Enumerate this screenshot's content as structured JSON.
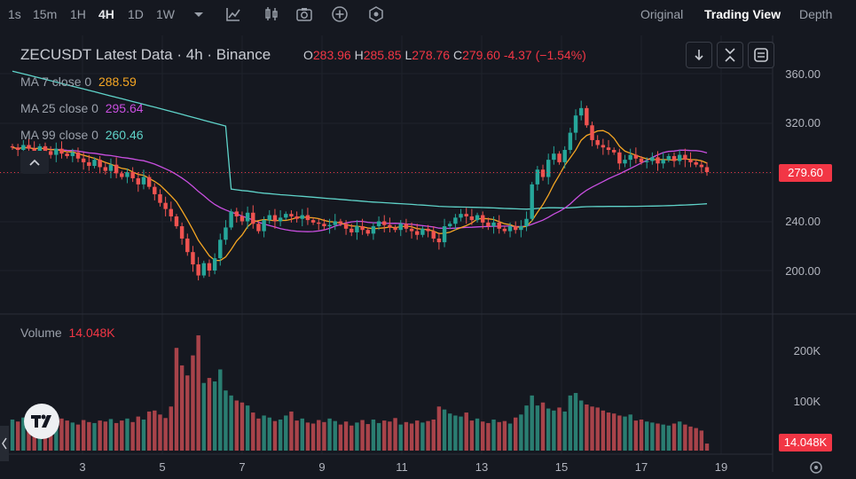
{
  "toolbar": {
    "timeframes": [
      "1s",
      "15m",
      "1H",
      "4H",
      "1D",
      "1W"
    ],
    "active_timeframe": "4H",
    "icons": [
      "chevron-down-icon",
      "indicator-icon",
      "candles-icon",
      "camera-icon",
      "add-circle-icon",
      "hexagon-icon"
    ],
    "views": [
      "Original",
      "Trading View",
      "Depth"
    ],
    "active_view": "Trading View"
  },
  "legend": {
    "symbol_title": "ZECUSDT Latest Data · 4h · Binance",
    "o_label": "O",
    "o_value": "283.96",
    "h_label": "H",
    "h_value": "285.85",
    "l_label": "L",
    "l_value": "278.76",
    "c_label": "C",
    "c_value": "279.60",
    "change": "-4.37 (−1.54%)",
    "ma7_label": "MA 7 close 0",
    "ma7_value": "288.59",
    "ma25_label": "MA 25 close 0",
    "ma25_value": "295.64",
    "ma99_label": "MA 99 close 0",
    "ma99_value": "260.46",
    "volume_label": "Volume",
    "volume_value": "14.048K"
  },
  "colors": {
    "up": "#26a69a",
    "down": "#ef5350",
    "ma7": "#f5a623",
    "ma25": "#c94fe0",
    "ma99": "#5fd3c9",
    "background": "#151820",
    "last_price_bg": "#f23645"
  },
  "price_axis": {
    "labels": [
      "360.00",
      "320.00",
      "280.00",
      "240.00",
      "200.00"
    ],
    "last_price": "279.60"
  },
  "volume_axis": {
    "labels": [
      "200K",
      "100K"
    ],
    "last_volume": "14.048K"
  },
  "x_axis": {
    "labels": [
      "3",
      "5",
      "7",
      "9",
      "11",
      "13",
      "15",
      "17",
      "19"
    ]
  },
  "chart_data": {
    "type": "candlestick",
    "title": "ZECUSDT Latest Data · 4h · Binance",
    "x_ticks": [
      "3",
      "5",
      "7",
      "9",
      "11",
      "13",
      "15",
      "17",
      "19"
    ],
    "ylim": [
      180,
      370
    ],
    "volume_ylim": [
      0,
      260000
    ],
    "closes": [
      300,
      298,
      302,
      299,
      296,
      301,
      297,
      294,
      299,
      295,
      293,
      296,
      291,
      288,
      285,
      290,
      284,
      281,
      286,
      279,
      276,
      280,
      275,
      270,
      276,
      268,
      262,
      255,
      250,
      244,
      236,
      226,
      215,
      205,
      196,
      206,
      200,
      210,
      225,
      235,
      248,
      244,
      240,
      247,
      238,
      232,
      241,
      245,
      240,
      243,
      246,
      244,
      242,
      245,
      241,
      239,
      238,
      236,
      237,
      240,
      238,
      234,
      231,
      236,
      233,
      230,
      236,
      240,
      237,
      235,
      233,
      238,
      234,
      232,
      229,
      234,
      232,
      226,
      223,
      236,
      238,
      243,
      246,
      244,
      241,
      245,
      239,
      236,
      239,
      234,
      232,
      236,
      233,
      236,
      242,
      270,
      282,
      276,
      290,
      295,
      288,
      298,
      312,
      326,
      332,
      318,
      306,
      302,
      300,
      298,
      296,
      287,
      290,
      294,
      291,
      288,
      289,
      292,
      287,
      290,
      293,
      289,
      294,
      290,
      288,
      286,
      284,
      280
    ],
    "volumes": [
      62000,
      58000,
      66000,
      60000,
      54000,
      59000,
      62000,
      57000,
      50000,
      64000,
      60000,
      56000,
      52000,
      61000,
      57000,
      55000,
      60000,
      58000,
      63000,
      55000,
      60000,
      64000,
      57000,
      68000,
      62000,
      78000,
      80000,
      72000,
      65000,
      88000,
      205000,
      170000,
      150000,
      190000,
      230000,
      135000,
      145000,
      138000,
      162000,
      120000,
      110000,
      100000,
      96000,
      90000,
      76000,
      64000,
      70000,
      66000,
      59000,
      62000,
      70000,
      78000,
      60000,
      64000,
      56000,
      54000,
      61000,
      57000,
      64000,
      59000,
      52000,
      58000,
      50000,
      56000,
      61000,
      53000,
      62000,
      55000,
      60000,
      58000,
      65000,
      52000,
      57000,
      54000,
      60000,
      56000,
      59000,
      62000,
      88000,
      82000,
      74000,
      70000,
      68000,
      76000,
      60000,
      64000,
      58000,
      55000,
      62000,
      57000,
      59000,
      54000,
      66000,
      72000,
      90000,
      110000,
      90000,
      96000,
      84000,
      80000,
      86000,
      78000,
      110000,
      115000,
      100000,
      92000,
      88000,
      86000,
      80000,
      76000,
      74000,
      70000,
      68000,
      72000,
      60000,
      62000,
      58000,
      56000,
      54000,
      52000,
      50000,
      54000,
      58000,
      52000,
      48000,
      45000,
      40000,
      14048
    ],
    "ma7_last": 288.59,
    "ma25_last": 295.64,
    "ma99_last": 260.46,
    "last_price": 279.6,
    "last_volume": 14048
  }
}
